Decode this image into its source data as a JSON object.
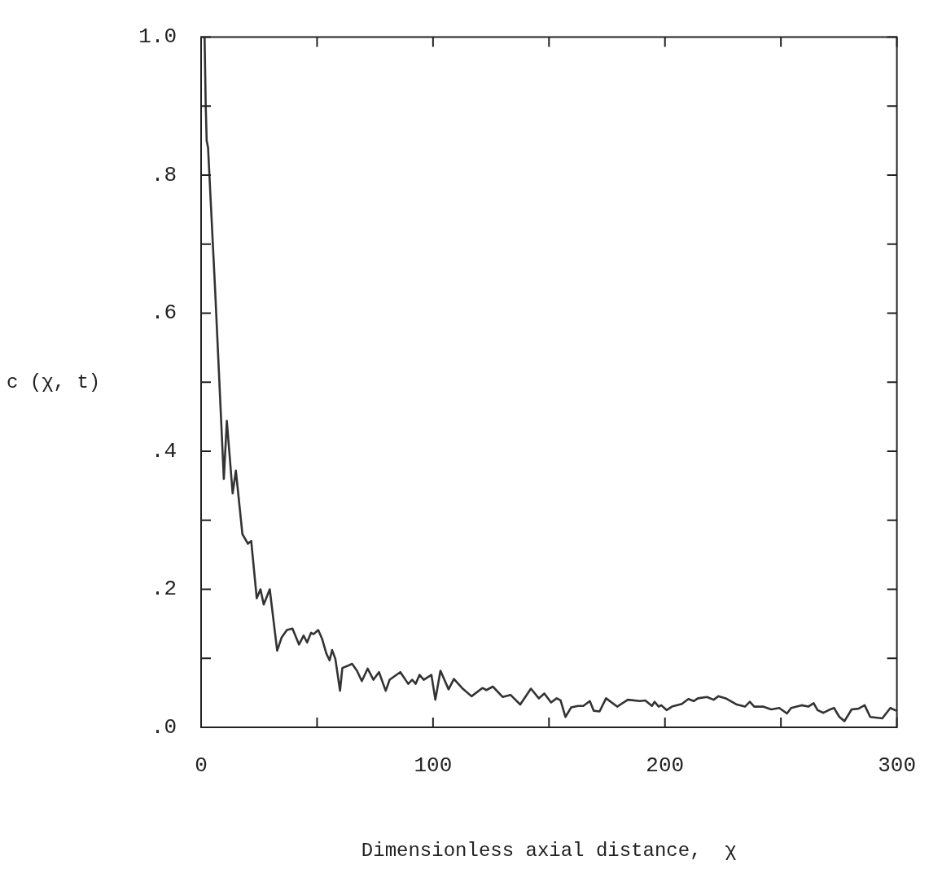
{
  "chart_data": {
    "type": "line",
    "xlabel": "Dimensionless axial distance,  χ",
    "ylabel": "c (χ, t)",
    "series": [
      {
        "color": "#333333",
        "x": [
          1.5,
          2,
          2.4,
          3,
          6.1,
          9.8,
          11.1,
          13.6,
          15,
          17.8,
          20.2,
          21.6,
          24,
          25.6,
          27,
          29.6,
          32.8,
          34.7,
          37,
          39.4,
          42.2,
          44.2,
          45.7,
          47.4,
          48.5,
          50.5,
          52.2,
          54,
          55.4,
          56.5,
          57.9,
          59.9,
          60.9,
          63.2,
          65.1,
          67.2,
          69.3,
          71.8,
          74.3,
          76.7,
          79.6,
          81.3,
          85.9,
          89.3,
          91,
          92.5,
          94.2,
          96,
          99.3,
          101,
          103.2,
          106.7,
          109,
          112.5,
          116.6,
          121.3,
          123,
          125.8,
          130,
          133.4,
          137.6,
          142.2,
          145.6,
          148,
          150.9,
          153.3,
          155,
          157.1,
          159.6,
          162.5,
          164.8,
          167.6,
          169.3,
          171.8,
          174.6,
          179.4,
          184,
          189.2,
          191.5,
          194.4,
          195.5,
          197.3,
          198.4,
          200.7,
          203,
          207.3,
          210.1,
          212.4,
          214.2,
          218.1,
          221,
          223,
          226.2,
          231,
          234.5,
          236.6,
          238.5,
          242.3,
          245.8,
          249.3,
          252.6,
          254.4,
          258.9,
          261.8,
          264.1,
          265.8,
          268.3,
          270.6,
          272.9,
          275.2,
          277.4,
          280.5,
          283.4,
          286.1,
          288.5,
          293.7,
          297.2,
          299.7
        ],
        "values": [
          1.0,
          0.9,
          0.85,
          0.84,
          0.63,
          0.36,
          0.444,
          0.339,
          0.372,
          0.28,
          0.266,
          0.27,
          0.187,
          0.2,
          0.178,
          0.2,
          0.111,
          0.13,
          0.141,
          0.143,
          0.12,
          0.133,
          0.123,
          0.137,
          0.135,
          0.141,
          0.128,
          0.107,
          0.097,
          0.112,
          0.099,
          0.053,
          0.086,
          0.089,
          0.092,
          0.082,
          0.067,
          0.085,
          0.069,
          0.08,
          0.053,
          0.069,
          0.08,
          0.063,
          0.069,
          0.063,
          0.076,
          0.069,
          0.076,
          0.04,
          0.082,
          0.055,
          0.07,
          0.057,
          0.045,
          0.057,
          0.054,
          0.059,
          0.044,
          0.047,
          0.033,
          0.056,
          0.042,
          0.049,
          0.036,
          0.042,
          0.039,
          0.015,
          0.029,
          0.031,
          0.031,
          0.038,
          0.024,
          0.023,
          0.042,
          0.03,
          0.04,
          0.038,
          0.039,
          0.031,
          0.037,
          0.03,
          0.032,
          0.025,
          0.03,
          0.034,
          0.041,
          0.038,
          0.042,
          0.044,
          0.04,
          0.045,
          0.042,
          0.033,
          0.03,
          0.037,
          0.03,
          0.03,
          0.026,
          0.028,
          0.02,
          0.028,
          0.032,
          0.03,
          0.035,
          0.025,
          0.021,
          0.025,
          0.028,
          0.015,
          0.009,
          0.026,
          0.027,
          0.032,
          0.015,
          0.013,
          0.028,
          0.024
        ]
      }
    ],
    "xlim": [
      0,
      300
    ],
    "xticks": [
      0,
      {
        "value": 50,
        "label": null
      },
      100,
      {
        "value": 150,
        "label": null
      },
      200,
      {
        "value": 250,
        "label": null
      },
      300
    ],
    "ylim": [
      0,
      1
    ],
    "yticks": [
      {
        "value": 0,
        "label": ".0"
      },
      {
        "value": 0.1,
        "label": null
      },
      {
        "value": 0.2,
        "label": ".2"
      },
      {
        "value": 0.3,
        "label": null
      },
      {
        "value": 0.4,
        "label": ".4"
      },
      {
        "value": 0.5,
        "label": null
      },
      {
        "value": 0.6,
        "label": ".6"
      },
      {
        "value": 0.7,
        "label": null
      },
      {
        "value": 0.8,
        "label": ".8"
      },
      {
        "value": 0.9,
        "label": null
      },
      {
        "value": 1,
        "label": "1.0"
      }
    ],
    "grid": false,
    "legend": false,
    "marker": "none",
    "line_style": "solid"
  }
}
